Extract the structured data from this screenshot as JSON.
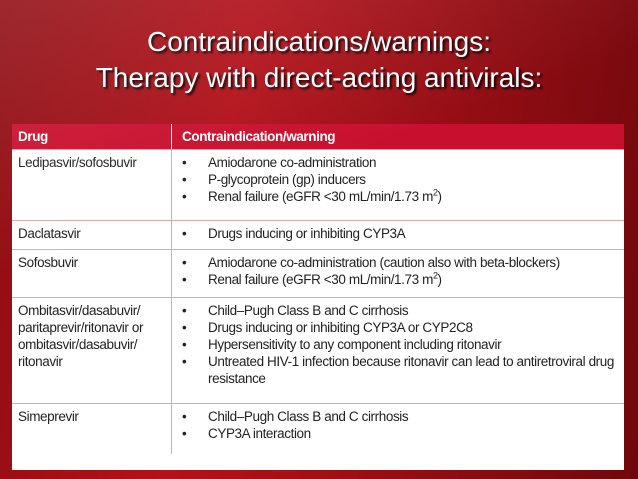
{
  "title": {
    "line1": "Contraindications/warnings:",
    "line2": "Therapy with direct-acting antivirals:"
  },
  "table": {
    "header": [
      "Drug",
      "Contraindication/warning"
    ],
    "rows": [
      {
        "drug": [
          "Ledipasvir/sofosbuvir"
        ],
        "items": [
          "Amiodarone co-administration",
          "P-glycoprotein (gp) inducers",
          {
            "text": "Renal failure (eGFR <30 mL/min/1.73 m",
            "sup": "2",
            "after": ")"
          }
        ]
      },
      {
        "drug": [
          "Daclatasvir"
        ],
        "items": [
          "Drugs inducing or inhibiting CYP3A"
        ]
      },
      {
        "drug": [
          "Sofosbuvir"
        ],
        "items": [
          "Amiodarone co-administration (caution also with beta-blockers)",
          {
            "text": "Renal failure (eGFR <30 mL/min/1.73 m",
            "sup": "2",
            "after": ")"
          }
        ]
      },
      {
        "drug": [
          "Ombitasvir/dasabuvir/",
          "paritaprevir/ritonavir or",
          "ombitasvir/dasabuvir/",
          "ritonavir"
        ],
        "items": [
          "Child–Pugh Class B and C cirrhosis",
          "Drugs inducing or inhibiting CYP3A or CYP2C8",
          "Hypersensitivity to any component including ritonavir",
          "Untreated HIV-1 infection because ritonavir can lead to antiretroviral drug resistance"
        ]
      },
      {
        "drug": [
          "Simeprevir"
        ],
        "items": [
          "Child–Pugh Class B and C cirrhosis",
          "CYP3A interaction"
        ]
      }
    ]
  }
}
